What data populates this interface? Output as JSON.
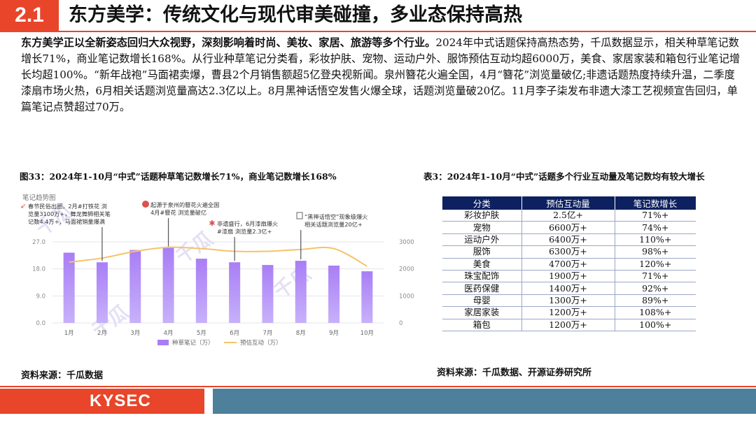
{
  "header": {
    "section_number": "2.1",
    "title": "东方美学：传统文化与现代审美碰撞，多业态保持高热"
  },
  "intro": {
    "lead": "东方美学正以全新姿态回归大众视野，深刻影响着时尚、美妆、家居、旅游等多个行业。",
    "body": "2024年中式话题保持高热态势，千瓜数据显示，相关种草笔记数增长71%，商业笔记数增长168%。从行业种草笔记分类看，彩妆护肤、宠物、运动户外、服饰预估互动均超6000万，美食、家居家装和箱包行业笔记增长均超100%。“新年战袍”马面裙卖爆，曹县2个月销售额超5亿登央视新闻。泉州簪花火遍全国，4月“簪花”浏览量破亿;非遗话题热度持续升温，二季度漆扇市场火热，6月相关话题浏览量高达2.3亿以上。8月黑神话悟空发售火爆全球，话题浏览量破20亿。11月李子柒发布非遗大漆工艺视频宣告回归，单篇笔记点赞超过70万。"
  },
  "figure": {
    "caption": "图33：2024年1-10月“中式”话题种草笔记数增长71%，商业笔记数增长168%",
    "source": "资料来源：千瓜数据"
  },
  "table": {
    "caption": "表3：2024年1-10月“中式”话题多个行业互动量及笔记数均有较大增长",
    "source": "资料来源：千瓜数据、开源证券研究所",
    "headers": [
      "分类",
      "预估互动量",
      "笔记数增长"
    ],
    "rows": [
      [
        "彩妆护肤",
        "2.5亿+",
        "71%+"
      ],
      [
        "宠物",
        "6600万+",
        "74%+"
      ],
      [
        "运动户外",
        "6400万+",
        "110%+"
      ],
      [
        "服饰",
        "6300万+",
        "98%+"
      ],
      [
        "美食",
        "4700万+",
        "120%+"
      ],
      [
        "珠宝配饰",
        "1900万+",
        "71%+"
      ],
      [
        "医药保健",
        "1400万+",
        "92%+"
      ],
      [
        "母婴",
        "1300万+",
        "89%+"
      ],
      [
        "家居家装",
        "1200万+",
        "108%+"
      ],
      [
        "箱包",
        "1200万+",
        "100%+"
      ]
    ]
  },
  "chart_data": {
    "type": "bar",
    "title": "笔记趋势图",
    "categories": [
      "1月",
      "2月",
      "3月",
      "4月",
      "5月",
      "6月",
      "7月",
      "8月",
      "9月",
      "10月"
    ],
    "series": [
      {
        "name": "种草笔记（万）",
        "type": "bar",
        "axis": "left",
        "color": "#a97ef5",
        "values": [
          23.4,
          20.2,
          24.3,
          25.0,
          21.4,
          20.2,
          19.3,
          20.7,
          19.1,
          17.2
        ]
      },
      {
        "name": "预估互动（万）",
        "type": "line",
        "axis": "right",
        "color": "#f5c26b",
        "values": [
          2250,
          2400,
          2650,
          2800,
          2750,
          2650,
          2650,
          2720,
          2750,
          2100
        ]
      }
    ],
    "y_left": {
      "ticks": [
        "0.0",
        "9.0",
        "18.0",
        "27.0"
      ],
      "range": [
        0,
        27
      ]
    },
    "y_right": {
      "ticks": [
        "0",
        "1000",
        "2000",
        "3000"
      ],
      "range": [
        0,
        3000
      ]
    },
    "annotations": [
      {
        "month": "2月",
        "text": [
          "春节民俗出圈，2月#打铁花 浏",
          "览量3100万+，舞龙舞狮相关笔",
          "记数4.4万+，马面裙销量爆满"
        ]
      },
      {
        "month": "4月",
        "text": [
          "起源于泉州的簪花火遍全国",
          "4月#簪花 浏览量破亿"
        ]
      },
      {
        "month": "6月",
        "text": [
          "非遗盛行，6月漆扇爆火",
          "#漆扇 浏览量2.3亿+"
        ]
      },
      {
        "month": "8月",
        "text": [
          "“黑神话悟空”现象级爆火",
          "相关话题浏览量20亿+"
        ]
      }
    ],
    "watermark": "千瓜",
    "grid": true,
    "legend_position": "bottom"
  },
  "footer": {
    "logo_text": "KYSEC"
  }
}
